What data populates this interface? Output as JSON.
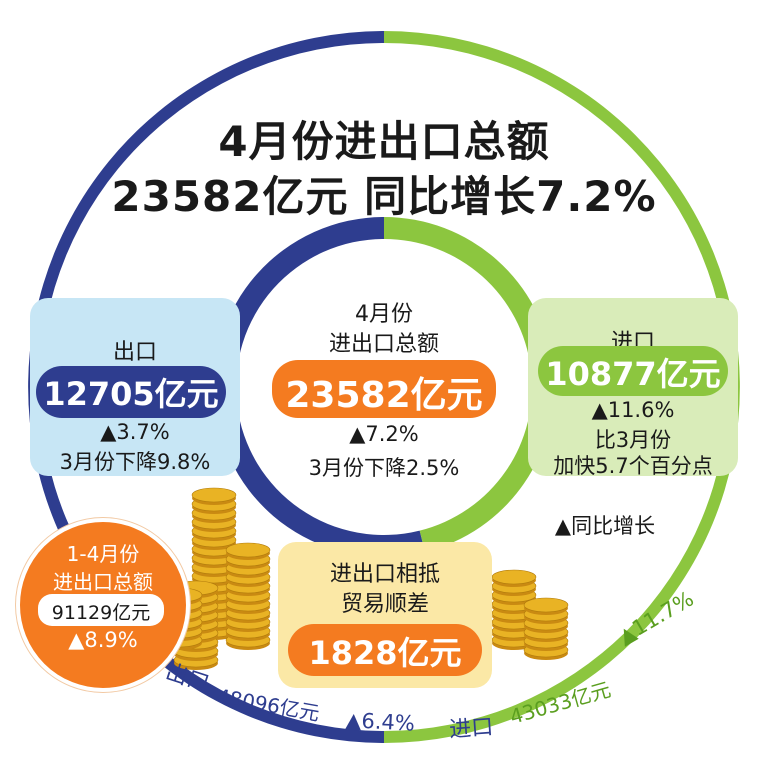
{
  "title": {
    "line1": "4月份进出口总额",
    "line2": "23582亿元  同比增长7.2%"
  },
  "center": {
    "line1": "4月份",
    "line2": "进出口总额",
    "value": "23582亿元",
    "growth": "▲7.2%",
    "note": "3月份下降2.5%"
  },
  "export_panel": {
    "label": "出口",
    "value": "12705亿元",
    "growth": "▲3.7%",
    "note": "3月份下降9.8%"
  },
  "import_panel": {
    "label": "进口",
    "value": "10877亿元",
    "growth": "▲11.6%",
    "note1": "比3月份",
    "note2": "加快5.7个百分点"
  },
  "legend": "▲同比增长",
  "ytd": {
    "line1": "1-4月份",
    "line2": "进出口总额",
    "value": "91129亿元",
    "growth": "▲8.9%",
    "export_label": "出口",
    "export_value": "48096亿元",
    "export_growth": "▲6.4%",
    "import_label": "进口",
    "import_value": "43033亿元",
    "import_growth": "▲11.7%"
  },
  "surplus": {
    "line1": "进出口相抵",
    "line2": "贸易顺差",
    "value": "1828亿元"
  },
  "colors": {
    "navy": "#2e3d8f",
    "green": "#8cc63f",
    "orange": "#f47b20",
    "light_blue": "#c7e6f5",
    "light_green": "#d9ecb9",
    "light_yellow": "#fbe8a6",
    "gold": "#e9b324"
  },
  "chart_data": {
    "type": "pie",
    "title": "4月份进出口总额",
    "categories": [
      "出口",
      "进口"
    ],
    "values": [
      12705,
      10877
    ],
    "unit": "亿元"
  }
}
